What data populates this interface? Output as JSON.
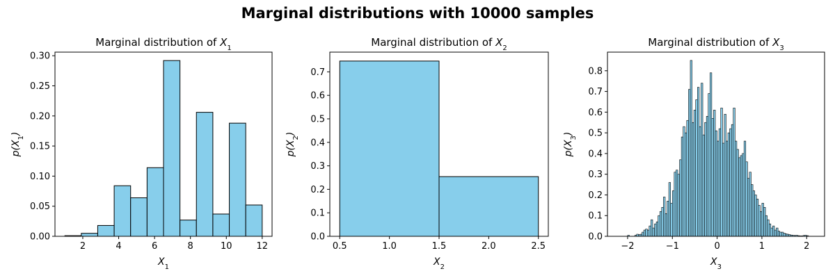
{
  "suptitle": "Marginal distributions with 10000 samples",
  "colors": {
    "bar_fill": "#87CEEB",
    "bar_edge": "#000000"
  },
  "chart_data": [
    {
      "type": "bar",
      "title_prefix": "Marginal distribution of ",
      "var_base": "X",
      "var_sub": "1",
      "xlabel_base": "X",
      "xlabel_sub": "1",
      "ylabel_base": "p(X",
      "ylabel_sub": "1",
      "ylabel_suffix": ")",
      "xlim": [
        0.45,
        12.55
      ],
      "ylim": [
        0,
        0.306
      ],
      "xticks": [
        2,
        4,
        6,
        8,
        10,
        12
      ],
      "xticklabels": [
        "2",
        "4",
        "6",
        "8",
        "10",
        "12"
      ],
      "yticks": [
        0,
        0.05,
        0.1,
        0.15,
        0.2,
        0.25,
        0.3
      ],
      "yticklabels": [
        "0.00",
        "0.05",
        "0.10",
        "0.15",
        "0.20",
        "0.25",
        "0.30"
      ],
      "bin_edges": [
        1.0,
        1.917,
        2.833,
        3.75,
        4.667,
        5.583,
        6.5,
        7.417,
        8.333,
        9.25,
        10.167,
        11.083,
        12.0
      ],
      "values": [
        0.001,
        0.005,
        0.018,
        0.084,
        0.064,
        0.114,
        0.292,
        0.027,
        0.206,
        0.037,
        0.188,
        0.052
      ]
    },
    {
      "type": "bar",
      "title_prefix": "Marginal distribution of ",
      "var_base": "X",
      "var_sub": "2",
      "xlabel_base": "X",
      "xlabel_sub": "2",
      "ylabel_base": "p(X",
      "ylabel_sub": "2",
      "ylabel_suffix": ")",
      "xlim": [
        0.4,
        2.6
      ],
      "ylim": [
        0,
        0.784
      ],
      "xticks": [
        0.5,
        1.0,
        1.5,
        2.0,
        2.5
      ],
      "xticklabels": [
        "0.5",
        "1.0",
        "1.5",
        "2.0",
        "2.5"
      ],
      "yticks": [
        0,
        0.1,
        0.2,
        0.3,
        0.4,
        0.5,
        0.6,
        0.7
      ],
      "yticklabels": [
        "0.0",
        "0.1",
        "0.2",
        "0.3",
        "0.4",
        "0.5",
        "0.6",
        "0.7"
      ],
      "bin_edges": [
        0.5,
        1.5,
        2.5
      ],
      "values": [
        0.746,
        0.254
      ]
    },
    {
      "type": "bar",
      "title_prefix": "Marginal distribution of ",
      "var_base": "X",
      "var_sub": "3",
      "xlabel_base": "X",
      "xlabel_sub": "3",
      "ylabel_base": "p(X",
      "ylabel_sub": "3",
      "ylabel_suffix": ")",
      "xlim": [
        -2.45,
        2.4
      ],
      "ylim": [
        0,
        0.89
      ],
      "xticks": [
        -2,
        -1,
        0,
        1,
        2
      ],
      "xticklabels": [
        "−2",
        "−1",
        "0",
        "1",
        "2"
      ],
      "yticks": [
        0,
        0.1,
        0.2,
        0.3,
        0.4,
        0.5,
        0.6,
        0.7,
        0.8
      ],
      "yticklabels": [
        "0.0",
        "0.1",
        "0.2",
        "0.3",
        "0.4",
        "0.5",
        "0.6",
        "0.7",
        "0.8"
      ],
      "bin_start": -2.0,
      "bin_width": 0.04,
      "values": [
        0.005,
        0.0,
        0.0,
        0.0,
        0.005,
        0.01,
        0.008,
        0.01,
        0.02,
        0.03,
        0.035,
        0.03,
        0.05,
        0.08,
        0.04,
        0.06,
        0.07,
        0.1,
        0.12,
        0.14,
        0.19,
        0.11,
        0.17,
        0.26,
        0.16,
        0.22,
        0.31,
        0.32,
        0.3,
        0.37,
        0.48,
        0.53,
        0.5,
        0.56,
        0.71,
        0.85,
        0.55,
        0.61,
        0.66,
        0.72,
        0.53,
        0.74,
        0.49,
        0.55,
        0.58,
        0.69,
        0.79,
        0.57,
        0.61,
        0.51,
        0.46,
        0.52,
        0.62,
        0.45,
        0.59,
        0.46,
        0.5,
        0.52,
        0.54,
        0.62,
        0.46,
        0.42,
        0.38,
        0.39,
        0.4,
        0.46,
        0.36,
        0.28,
        0.31,
        0.25,
        0.22,
        0.2,
        0.18,
        0.15,
        0.12,
        0.16,
        0.14,
        0.1,
        0.08,
        0.06,
        0.04,
        0.05,
        0.03,
        0.04,
        0.025,
        0.02,
        0.02,
        0.015,
        0.012,
        0.01,
        0.008,
        0.006,
        0.005,
        0.004,
        0.005,
        0.003,
        0.002,
        0.002,
        0.004,
        0.005,
        0.003
      ]
    }
  ]
}
